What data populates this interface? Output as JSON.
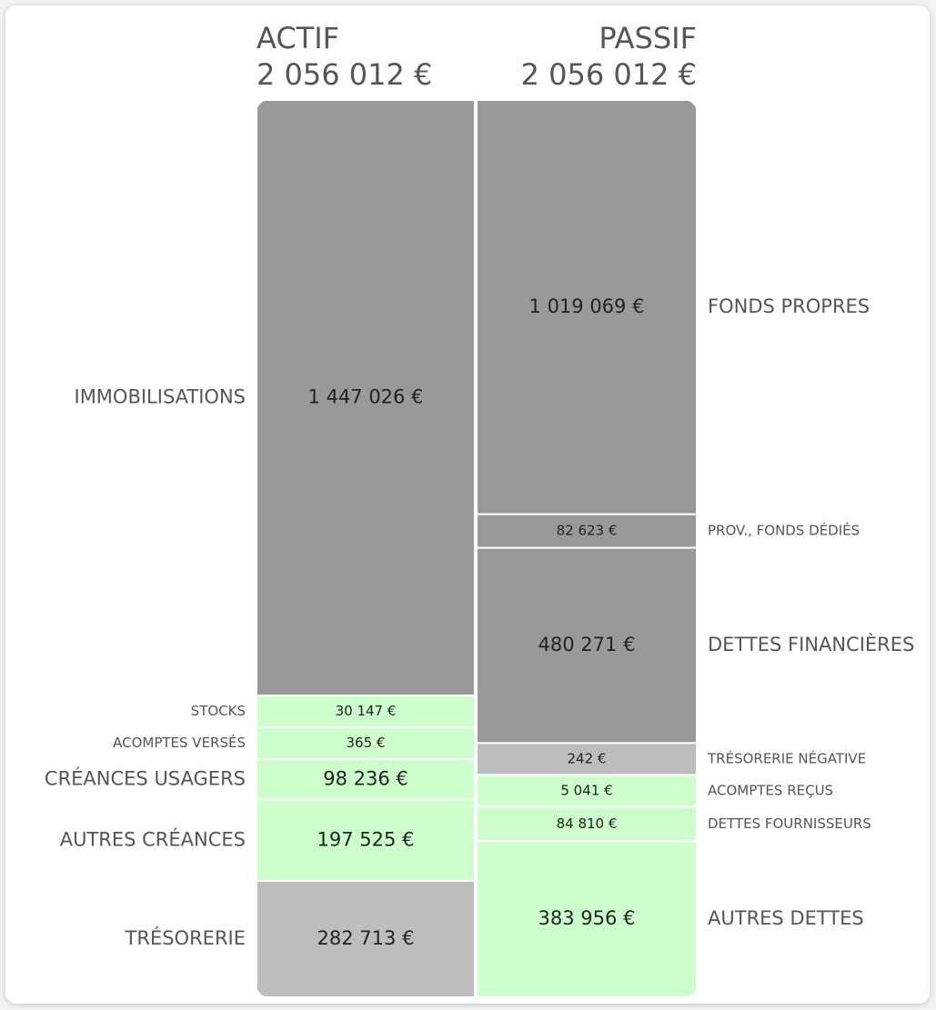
{
  "chart_data": {
    "type": "bar",
    "columns": [
      {
        "name": "ACTIF",
        "total": 2056012,
        "total_label": "2 056 012 €",
        "segments": [
          {
            "name": "IMMOBILISATIONS",
            "value": 1447026,
            "value_label": "1 447 026 €",
            "color": "#999999"
          },
          {
            "name": "STOCKS",
            "value": 30147,
            "value_label": "30 147 €",
            "color": "#ccffcc"
          },
          {
            "name": "ACOMPTES VERSÉS",
            "value": 365,
            "value_label": "365 €",
            "color": "#ccffcc"
          },
          {
            "name": "CRÉANCES USAGERS",
            "value": 98236,
            "value_label": "98 236 €",
            "color": "#ccffcc"
          },
          {
            "name": "AUTRES CRÉANCES",
            "value": 197525,
            "value_label": "197 525 €",
            "color": "#ccffcc"
          },
          {
            "name": "TRÉSORERIE",
            "value": 282713,
            "value_label": "282 713 €",
            "color": "#bdbdbd"
          }
        ]
      },
      {
        "name": "PASSIF",
        "total": 2056012,
        "total_label": "2 056 012 €",
        "segments": [
          {
            "name": "FONDS PROPRES",
            "value": 1019069,
            "value_label": "1 019 069 €",
            "color": "#999999"
          },
          {
            "name": "PROV., FONDS DÉDIÉS",
            "value": 82623,
            "value_label": "82 623 €",
            "color": "#999999"
          },
          {
            "name": "DETTES FINANCIÈRES",
            "value": 480271,
            "value_label": "480 271 €",
            "color": "#999999"
          },
          {
            "name": "TRÉSORERIE NÉGATIVE",
            "value": 242,
            "value_label": "242 €",
            "color": "#bdbdbd"
          },
          {
            "name": "ACOMPTES REÇUS",
            "value": 5041,
            "value_label": "5 041 €",
            "color": "#ccffcc"
          },
          {
            "name": "DETTES FOURNISSEURS",
            "value": 84810,
            "value_label": "84 810 €",
            "color": "#ccffcc"
          },
          {
            "name": "AUTRES DETTES",
            "value": 383956,
            "value_label": "383 956 €",
            "color": "#ccffcc"
          }
        ]
      }
    ]
  }
}
